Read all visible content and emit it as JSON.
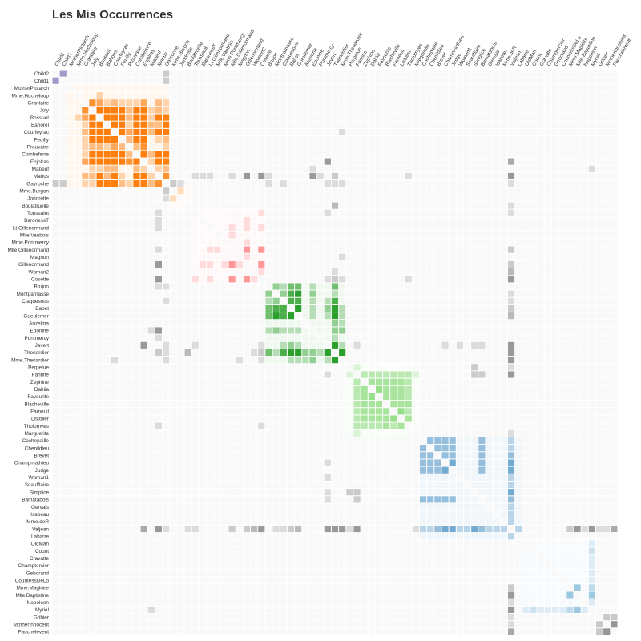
{
  "chart_data": {
    "type": "heatmap",
    "title": "Les Mis Occurrences",
    "labels": [
      "Child2",
      "Child1",
      "MotherPlutarch",
      "Mme.Hucheloup",
      "Grantaire",
      "Joly",
      "Bossuet",
      "Bahorel",
      "Courfeyrac",
      "Feuilly",
      "Prouvaire",
      "Combeferre",
      "Enjolras",
      "Mabeuf",
      "Marius",
      "Gavroche",
      "Mme.Burgon",
      "Jondrette",
      "Boulatruelle",
      "Toussaint",
      "BaronessT",
      "Lt.Gillenormand",
      "Mlle.Vaubois",
      "Mme.Pontmercy",
      "Mlle.Gillenormand",
      "Magnon",
      "Gillenormand",
      "Woman2",
      "Cosette",
      "Brujon",
      "Montparnasse",
      "Claquesous",
      "Babet",
      "Gueulemer",
      "Anzelma",
      "Eponine",
      "Pontmercy",
      "Javert",
      "Thenardier",
      "Mme.Thenardier",
      "Perpetue",
      "Fantine",
      "Zephine",
      "Dahlia",
      "Favourite",
      "Blacheville",
      "Fameuil",
      "Listolier",
      "Tholomyes",
      "Marguerite",
      "Cochepaille",
      "Chenildieu",
      "Brevet",
      "Champmathieu",
      "Judge",
      "Woman1",
      "Scaufflaire",
      "Simplice",
      "Bamatabois",
      "Gervais",
      "Isabeau",
      "Mme.deR",
      "Valjean",
      "Labarre",
      "OldMan",
      "Count",
      "Cravatte",
      "Champtercier",
      "Geborand",
      "CountessDeLo",
      "Mme.Magloire",
      "Mlle.Baptistine",
      "Napoleon",
      "Myriel",
      "Gribier",
      "MotherInnocent",
      "Fauchelevent"
    ],
    "groups": [
      9,
      9,
      6,
      6,
      6,
      6,
      6,
      6,
      6,
      6,
      6,
      6,
      6,
      6,
      6,
      6,
      5,
      5,
      5,
      4,
      4,
      4,
      4,
      4,
      4,
      4,
      4,
      4,
      4,
      3,
      3,
      3,
      3,
      3,
      3,
      3,
      3,
      3,
      3,
      3,
      2,
      2,
      2,
      2,
      2,
      2,
      2,
      2,
      2,
      2,
      1,
      1,
      1,
      1,
      1,
      1,
      1,
      1,
      1,
      1,
      1,
      1,
      1,
      1,
      0,
      0,
      0,
      0,
      0,
      0,
      0,
      0,
      0,
      0,
      8,
      8,
      8
    ],
    "group_colors": {
      "0": "#9ecae1",
      "1": "#3182bd",
      "2": "#98df8a",
      "3": "#2ca02c",
      "4": "#ff9896",
      "5": "#ffbb78",
      "6": "#ff7f0e",
      "8": "#636363",
      "9": "#756bb1"
    },
    "neutral_color": "#999999",
    "links": [
      [
        1,
        0,
        3
      ],
      [
        4,
        5,
        4
      ],
      [
        4,
        6,
        3
      ],
      [
        4,
        7,
        1
      ],
      [
        4,
        8,
        2
      ],
      [
        4,
        9,
        1
      ],
      [
        4,
        10,
        1
      ],
      [
        4,
        11,
        1
      ],
      [
        4,
        12,
        3
      ],
      [
        4,
        14,
        2
      ],
      [
        4,
        15,
        1
      ],
      [
        5,
        6,
        7
      ],
      [
        5,
        7,
        5
      ],
      [
        5,
        8,
        6
      ],
      [
        5,
        9,
        5
      ],
      [
        5,
        10,
        2
      ],
      [
        5,
        11,
        5
      ],
      [
        5,
        12,
        5
      ],
      [
        5,
        13,
        1
      ],
      [
        5,
        14,
        2
      ],
      [
        5,
        15,
        1
      ],
      [
        6,
        7,
        6
      ],
      [
        6,
        8,
        12
      ],
      [
        6,
        9,
        6
      ],
      [
        6,
        10,
        2
      ],
      [
        6,
        11,
        9
      ],
      [
        6,
        12,
        9
      ],
      [
        6,
        13,
        1
      ],
      [
        6,
        14,
        5
      ],
      [
        6,
        15,
        5
      ],
      [
        6,
        3,
        1
      ],
      [
        7,
        8,
        7
      ],
      [
        7,
        9,
        5
      ],
      [
        7,
        10,
        1
      ],
      [
        7,
        11,
        5
      ],
      [
        7,
        12,
        7
      ],
      [
        7,
        13,
        2
      ],
      [
        7,
        14,
        2
      ],
      [
        7,
        15,
        5
      ],
      [
        8,
        9,
        6
      ],
      [
        8,
        10,
        3
      ],
      [
        8,
        11,
        13
      ],
      [
        8,
        12,
        17
      ],
      [
        8,
        13,
        2
      ],
      [
        8,
        14,
        9
      ],
      [
        8,
        15,
        7
      ],
      [
        8,
        39,
        1
      ],
      [
        9,
        10,
        2
      ],
      [
        9,
        11,
        5
      ],
      [
        9,
        12,
        6
      ],
      [
        9,
        14,
        1
      ],
      [
        9,
        15,
        2
      ],
      [
        10,
        11,
        2
      ],
      [
        10,
        12,
        4
      ],
      [
        10,
        15,
        1
      ],
      [
        11,
        12,
        15
      ],
      [
        11,
        13,
        2
      ],
      [
        11,
        14,
        5
      ],
      [
        11,
        15,
        5
      ],
      [
        12,
        13,
        1
      ],
      [
        12,
        14,
        7
      ],
      [
        12,
        15,
        7
      ],
      [
        12,
        37,
        6
      ],
      [
        12,
        62,
        4
      ],
      [
        13,
        14,
        1
      ],
      [
        13,
        15,
        2
      ],
      [
        13,
        73,
        1
      ],
      [
        13,
        35,
        1
      ],
      [
        14,
        15,
        4
      ],
      [
        14,
        26,
        12
      ],
      [
        14,
        28,
        21
      ],
      [
        14,
        62,
        19
      ],
      [
        14,
        24,
        1
      ],
      [
        14,
        21,
        1
      ],
      [
        14,
        38,
        2
      ],
      [
        14,
        35,
        5
      ],
      [
        14,
        19,
        1
      ],
      [
        14,
        36,
        1
      ],
      [
        14,
        29,
        1
      ],
      [
        14,
        48,
        1
      ],
      [
        15,
        16,
        2
      ],
      [
        15,
        37,
        1
      ],
      [
        15,
        38,
        1
      ],
      [
        15,
        62,
        1
      ],
      [
        15,
        39,
        1
      ],
      [
        15,
        29,
        1
      ],
      [
        15,
        31,
        1
      ],
      [
        15,
        1,
        2
      ],
      [
        15,
        0,
        2
      ],
      [
        15,
        17,
        1
      ],
      [
        16,
        17,
        1
      ],
      [
        17,
        16,
        2
      ],
      [
        18,
        38,
        3
      ],
      [
        18,
        62,
        1
      ],
      [
        19,
        28,
        1
      ],
      [
        19,
        37,
        1
      ],
      [
        19,
        62,
        1
      ],
      [
        20,
        26,
        1
      ],
      [
        20,
        14,
        1
      ],
      [
        21,
        24,
        1
      ],
      [
        21,
        26,
        1
      ],
      [
        21,
        28,
        1
      ],
      [
        22,
        24,
        1
      ],
      [
        23,
        26,
        1
      ],
      [
        24,
        26,
        9
      ],
      [
        24,
        28,
        8
      ],
      [
        24,
        62,
        2
      ],
      [
        24,
        14,
        1
      ],
      [
        25,
        26,
        1
      ],
      [
        25,
        39,
        1
      ],
      [
        26,
        28,
        7
      ],
      [
        26,
        62,
        2
      ],
      [
        26,
        14,
        12
      ],
      [
        27,
        28,
        1
      ],
      [
        27,
        62,
        3
      ],
      [
        27,
        38,
        1
      ],
      [
        28,
        62,
        31
      ],
      [
        28,
        37,
        1
      ],
      [
        28,
        38,
        2
      ],
      [
        28,
        14,
        21
      ],
      [
        28,
        39,
        1
      ],
      [
        28,
        48,
        1
      ],
      [
        29,
        30,
        2
      ],
      [
        29,
        31,
        1
      ],
      [
        29,
        32,
        3
      ],
      [
        29,
        33,
        3
      ],
      [
        29,
        38,
        3
      ],
      [
        29,
        35,
        1
      ],
      [
        30,
        31,
        2
      ],
      [
        30,
        32,
        4
      ],
      [
        30,
        33,
        5
      ],
      [
        30,
        38,
        1
      ],
      [
        30,
        35,
        2
      ],
      [
        30,
        62,
        1
      ],
      [
        31,
        32,
        4
      ],
      [
        31,
        33,
        4
      ],
      [
        31,
        38,
        4
      ],
      [
        31,
        35,
        1
      ],
      [
        31,
        62,
        1
      ],
      [
        31,
        37,
        1
      ],
      [
        32,
        33,
        6
      ],
      [
        32,
        38,
        6
      ],
      [
        32,
        37,
        2
      ],
      [
        32,
        62,
        2
      ],
      [
        32,
        35,
        1
      ],
      [
        32,
        39,
        1
      ],
      [
        33,
        38,
        5
      ],
      [
        33,
        37,
        1
      ],
      [
        33,
        62,
        3
      ],
      [
        33,
        35,
        1
      ],
      [
        33,
        39,
        1
      ],
      [
        34,
        38,
        2
      ],
      [
        34,
        39,
        1
      ],
      [
        35,
        38,
        2
      ],
      [
        35,
        39,
        2
      ],
      [
        35,
        14,
        5
      ],
      [
        36,
        38,
        1
      ],
      [
        36,
        14,
        1
      ],
      [
        37,
        38,
        5
      ],
      [
        37,
        39,
        1
      ],
      [
        37,
        41,
        1
      ],
      [
        37,
        62,
        17
      ],
      [
        37,
        53,
        1
      ],
      [
        37,
        57,
        1
      ],
      [
        37,
        58,
        1
      ],
      [
        38,
        39,
        13
      ],
      [
        38,
        62,
        12
      ],
      [
        38,
        36,
        1
      ],
      [
        38,
        29,
        3
      ],
      [
        39,
        62,
        7
      ],
      [
        39,
        38,
        13
      ],
      [
        40,
        57,
        2
      ],
      [
        40,
        62,
        1
      ],
      [
        41,
        42,
        3
      ],
      [
        41,
        43,
        3
      ],
      [
        41,
        44,
        3
      ],
      [
        41,
        45,
        3
      ],
      [
        41,
        46,
        3
      ],
      [
        41,
        47,
        3
      ],
      [
        41,
        48,
        3
      ],
      [
        41,
        62,
        9
      ],
      [
        41,
        49,
        1
      ],
      [
        41,
        58,
        2
      ],
      [
        41,
        37,
        1
      ],
      [
        41,
        40,
        1
      ],
      [
        42,
        43,
        4
      ],
      [
        42,
        44,
        4
      ],
      [
        42,
        45,
        4
      ],
      [
        42,
        46,
        4
      ],
      [
        42,
        47,
        4
      ],
      [
        42,
        48,
        3
      ],
      [
        42,
        41,
        3
      ],
      [
        43,
        44,
        5
      ],
      [
        43,
        45,
        4
      ],
      [
        43,
        46,
        4
      ],
      [
        43,
        47,
        4
      ],
      [
        43,
        48,
        3
      ],
      [
        44,
        45,
        4
      ],
      [
        44,
        46,
        4
      ],
      [
        44,
        47,
        4
      ],
      [
        44,
        48,
        3
      ],
      [
        45,
        46,
        4
      ],
      [
        45,
        47,
        4
      ],
      [
        45,
        48,
        4
      ],
      [
        46,
        47,
        5
      ],
      [
        46,
        48,
        3
      ],
      [
        47,
        48,
        4
      ],
      [
        49,
        41,
        1
      ],
      [
        49,
        62,
        1
      ],
      [
        50,
        51,
        2
      ],
      [
        50,
        52,
        2
      ],
      [
        50,
        53,
        2
      ],
      [
        50,
        54,
        2
      ],
      [
        50,
        62,
        1
      ],
      [
        50,
        58,
        2
      ],
      [
        51,
        52,
        2
      ],
      [
        51,
        53,
        2
      ],
      [
        51,
        54,
        2
      ],
      [
        51,
        62,
        1
      ],
      [
        51,
        58,
        2
      ],
      [
        52,
        53,
        2
      ],
      [
        52,
        54,
        2
      ],
      [
        52,
        62,
        2
      ],
      [
        52,
        58,
        2
      ],
      [
        53,
        54,
        3
      ],
      [
        53,
        62,
        3
      ],
      [
        53,
        58,
        2
      ],
      [
        53,
        37,
        1
      ],
      [
        54,
        62,
        3
      ],
      [
        54,
        58,
        2
      ],
      [
        55,
        62,
        1
      ],
      [
        55,
        37,
        1
      ],
      [
        56,
        62,
        1
      ],
      [
        57,
        62,
        3
      ],
      [
        57,
        37,
        1
      ],
      [
        57,
        40,
        2
      ],
      [
        57,
        41,
        2
      ],
      [
        58,
        62,
        2
      ],
      [
        58,
        41,
        2
      ],
      [
        59,
        62,
        1
      ],
      [
        60,
        62,
        1
      ],
      [
        61,
        62,
        1
      ],
      [
        62,
        63,
        1
      ],
      [
        62,
        73,
        5
      ],
      [
        62,
        70,
        2
      ],
      [
        62,
        71,
        7
      ],
      [
        62,
        76,
        4
      ],
      [
        62,
        75,
        1
      ],
      [
        62,
        74,
        1
      ],
      [
        62,
        72,
        1
      ],
      [
        64,
        73,
        1
      ],
      [
        65,
        73,
        2
      ],
      [
        66,
        73,
        1
      ],
      [
        67,
        73,
        1
      ],
      [
        68,
        73,
        1
      ],
      [
        69,
        73,
        1
      ],
      [
        70,
        71,
        6
      ],
      [
        70,
        73,
        3
      ],
      [
        71,
        73,
        8
      ],
      [
        72,
        73,
        1
      ],
      [
        74,
        76,
        1
      ],
      [
        74,
        75,
        1
      ],
      [
        75,
        76,
        3
      ],
      [
        76,
        62,
        4
      ]
    ]
  }
}
